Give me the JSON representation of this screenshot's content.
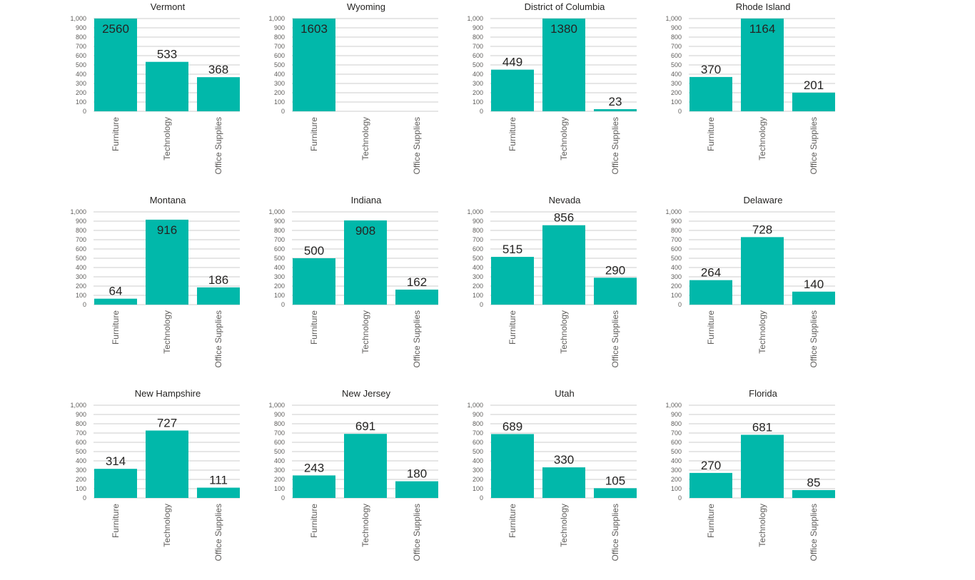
{
  "chart_data": {
    "type": "bar",
    "layout": "small-multiples 3x4",
    "categories": [
      "Furniture",
      "Technology",
      "Office Supplies"
    ],
    "ylim": [
      0,
      1000
    ],
    "yticks": [
      "0",
      "100",
      "200",
      "300",
      "400",
      "500",
      "600",
      "700",
      "800",
      "900",
      "1,000"
    ],
    "bar_color": "#01B8AA",
    "grid": true,
    "panels": [
      {
        "title": "Vermont",
        "values": [
          2560,
          533,
          368
        ]
      },
      {
        "title": "Wyoming",
        "values": [
          1603,
          null,
          null
        ]
      },
      {
        "title": "District of Columbia",
        "values": [
          449,
          1380,
          23
        ]
      },
      {
        "title": "Rhode Island",
        "values": [
          370,
          1164,
          201
        ]
      },
      {
        "title": "Montana",
        "values": [
          64,
          916,
          186
        ]
      },
      {
        "title": "Indiana",
        "values": [
          500,
          908,
          162
        ]
      },
      {
        "title": "Nevada",
        "values": [
          515,
          856,
          290
        ]
      },
      {
        "title": "Delaware",
        "values": [
          264,
          728,
          140
        ]
      },
      {
        "title": "New Hampshire",
        "values": [
          314,
          727,
          111
        ]
      },
      {
        "title": "New Jersey",
        "values": [
          243,
          691,
          180
        ]
      },
      {
        "title": "Utah",
        "values": [
          689,
          330,
          105
        ]
      },
      {
        "title": "Florida",
        "values": [
          270,
          681,
          85
        ]
      }
    ]
  }
}
